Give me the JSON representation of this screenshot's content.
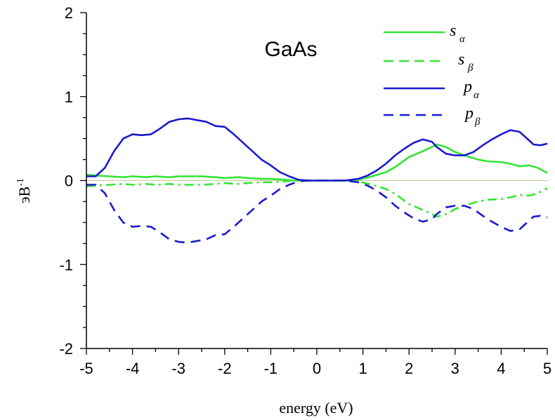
{
  "chart_data": {
    "type": "line",
    "title": "GaAs",
    "xlabel": "energy (eV)",
    "ylabel_base": "эВ",
    "ylabel_sup": "-1",
    "xlim": [
      -5,
      5
    ],
    "ylim": [
      -2,
      2
    ],
    "xticks": [
      "-5",
      "-4",
      "-3",
      "-2",
      "-1",
      "0",
      "1",
      "2",
      "3",
      "4",
      "5"
    ],
    "yticks": [
      "2",
      "1",
      "0",
      "-1",
      "-2"
    ],
    "legend_position": "top-right",
    "colors": {
      "green": "#33e433",
      "blue": "#1a1ad0",
      "zero_line": "#c8c896"
    },
    "series": [
      {
        "name": "s",
        "sub": "α",
        "color": "#33e433",
        "dash": "solid",
        "points": [
          [
            -5,
            0.07
          ],
          [
            -4.8,
            0.06
          ],
          [
            -4.5,
            0.05
          ],
          [
            -4.2,
            0.04
          ],
          [
            -4,
            0.05
          ],
          [
            -3.7,
            0.04
          ],
          [
            -3.5,
            0.05
          ],
          [
            -3.2,
            0.04
          ],
          [
            -3,
            0.05
          ],
          [
            -2.7,
            0.05
          ],
          [
            -2.5,
            0.05
          ],
          [
            -2.2,
            0.04
          ],
          [
            -2,
            0.03
          ],
          [
            -1.7,
            0.04
          ],
          [
            -1.5,
            0.03
          ],
          [
            -1.2,
            0.02
          ],
          [
            -1,
            0.02
          ],
          [
            -0.7,
            0.01
          ],
          [
            -0.5,
            0.0
          ],
          [
            -0.3,
            0.0
          ],
          [
            0,
            0
          ],
          [
            0.3,
            0
          ],
          [
            0.6,
            0
          ],
          [
            0.9,
            0.01
          ],
          [
            1.2,
            0.05
          ],
          [
            1.5,
            0.1
          ],
          [
            1.7,
            0.16
          ],
          [
            2,
            0.28
          ],
          [
            2.3,
            0.35
          ],
          [
            2.5,
            0.4
          ],
          [
            2.6,
            0.43
          ],
          [
            2.8,
            0.4
          ],
          [
            3,
            0.34
          ],
          [
            3.2,
            0.3
          ],
          [
            3.5,
            0.25
          ],
          [
            3.7,
            0.23
          ],
          [
            4,
            0.22
          ],
          [
            4.2,
            0.2
          ],
          [
            4.4,
            0.17
          ],
          [
            4.6,
            0.18
          ],
          [
            4.8,
            0.15
          ],
          [
            5,
            0.09
          ]
        ]
      },
      {
        "name": "s",
        "sub": "β",
        "color": "#33e433",
        "dash": "dashdot",
        "points": [
          [
            -5,
            -0.07
          ],
          [
            -4.8,
            -0.06
          ],
          [
            -4.5,
            -0.05
          ],
          [
            -4.2,
            -0.04
          ],
          [
            -4,
            -0.05
          ],
          [
            -3.7,
            -0.04
          ],
          [
            -3.5,
            -0.05
          ],
          [
            -3.2,
            -0.04
          ],
          [
            -3,
            -0.05
          ],
          [
            -2.7,
            -0.05
          ],
          [
            -2.5,
            -0.05
          ],
          [
            -2.2,
            -0.04
          ],
          [
            -2,
            -0.03
          ],
          [
            -1.7,
            -0.04
          ],
          [
            -1.5,
            -0.03
          ],
          [
            -1.2,
            -0.02
          ],
          [
            -1,
            -0.02
          ],
          [
            -0.7,
            -0.01
          ],
          [
            -0.5,
            0.0
          ],
          [
            -0.3,
            0.0
          ],
          [
            0,
            0
          ],
          [
            0.3,
            0
          ],
          [
            0.6,
            0
          ],
          [
            0.9,
            -0.01
          ],
          [
            1.2,
            -0.05
          ],
          [
            1.5,
            -0.1
          ],
          [
            1.7,
            -0.16
          ],
          [
            2,
            -0.28
          ],
          [
            2.3,
            -0.35
          ],
          [
            2.5,
            -0.4
          ],
          [
            2.6,
            -0.43
          ],
          [
            2.8,
            -0.4
          ],
          [
            3,
            -0.34
          ],
          [
            3.2,
            -0.3
          ],
          [
            3.5,
            -0.25
          ],
          [
            3.7,
            -0.23
          ],
          [
            4,
            -0.22
          ],
          [
            4.2,
            -0.2
          ],
          [
            4.4,
            -0.17
          ],
          [
            4.6,
            -0.18
          ],
          [
            4.8,
            -0.15
          ],
          [
            5,
            -0.09
          ]
        ]
      },
      {
        "name": "p",
        "sub": "α",
        "color": "#1a1ad0",
        "dash": "solid",
        "points": [
          [
            -5,
            0.05
          ],
          [
            -4.8,
            0.05
          ],
          [
            -4.6,
            0.15
          ],
          [
            -4.4,
            0.35
          ],
          [
            -4.2,
            0.5
          ],
          [
            -4,
            0.55
          ],
          [
            -3.8,
            0.54
          ],
          [
            -3.6,
            0.55
          ],
          [
            -3.4,
            0.62
          ],
          [
            -3.2,
            0.7
          ],
          [
            -3,
            0.73
          ],
          [
            -2.8,
            0.74
          ],
          [
            -2.6,
            0.72
          ],
          [
            -2.4,
            0.7
          ],
          [
            -2.2,
            0.65
          ],
          [
            -2,
            0.64
          ],
          [
            -1.8,
            0.55
          ],
          [
            -1.6,
            0.45
          ],
          [
            -1.4,
            0.35
          ],
          [
            -1.2,
            0.25
          ],
          [
            -1,
            0.18
          ],
          [
            -0.8,
            0.1
          ],
          [
            -0.6,
            0.05
          ],
          [
            -0.4,
            0.01
          ],
          [
            -0.2,
            0
          ],
          [
            0,
            0
          ],
          [
            0.3,
            0
          ],
          [
            0.6,
            0
          ],
          [
            0.9,
            0.02
          ],
          [
            1.1,
            0.06
          ],
          [
            1.3,
            0.12
          ],
          [
            1.5,
            0.2
          ],
          [
            1.7,
            0.3
          ],
          [
            1.9,
            0.38
          ],
          [
            2.1,
            0.45
          ],
          [
            2.3,
            0.49
          ],
          [
            2.5,
            0.46
          ],
          [
            2.6,
            0.4
          ],
          [
            2.8,
            0.32
          ],
          [
            3,
            0.3
          ],
          [
            3.2,
            0.3
          ],
          [
            3.4,
            0.34
          ],
          [
            3.6,
            0.42
          ],
          [
            3.8,
            0.49
          ],
          [
            4,
            0.55
          ],
          [
            4.2,
            0.6
          ],
          [
            4.4,
            0.58
          ],
          [
            4.6,
            0.48
          ],
          [
            4.7,
            0.43
          ],
          [
            4.85,
            0.42
          ],
          [
            5,
            0.44
          ]
        ]
      },
      {
        "name": "p",
        "sub": "β",
        "color": "#1a1ad0",
        "dash": "dashed",
        "points": [
          [
            -5,
            -0.05
          ],
          [
            -4.8,
            -0.05
          ],
          [
            -4.6,
            -0.15
          ],
          [
            -4.4,
            -0.35
          ],
          [
            -4.2,
            -0.5
          ],
          [
            -4,
            -0.55
          ],
          [
            -3.8,
            -0.54
          ],
          [
            -3.6,
            -0.55
          ],
          [
            -3.4,
            -0.62
          ],
          [
            -3.2,
            -0.7
          ],
          [
            -3,
            -0.73
          ],
          [
            -2.8,
            -0.74
          ],
          [
            -2.6,
            -0.72
          ],
          [
            -2.4,
            -0.7
          ],
          [
            -2.2,
            -0.65
          ],
          [
            -2,
            -0.64
          ],
          [
            -1.8,
            -0.55
          ],
          [
            -1.6,
            -0.45
          ],
          [
            -1.4,
            -0.35
          ],
          [
            -1.2,
            -0.25
          ],
          [
            -1,
            -0.18
          ],
          [
            -0.8,
            -0.1
          ],
          [
            -0.6,
            -0.05
          ],
          [
            -0.4,
            -0.01
          ],
          [
            -0.2,
            0
          ],
          [
            0,
            0
          ],
          [
            0.3,
            0
          ],
          [
            0.6,
            0
          ],
          [
            0.9,
            -0.02
          ],
          [
            1.1,
            -0.06
          ],
          [
            1.3,
            -0.12
          ],
          [
            1.5,
            -0.2
          ],
          [
            1.7,
            -0.3
          ],
          [
            1.9,
            -0.38
          ],
          [
            2.1,
            -0.45
          ],
          [
            2.3,
            -0.49
          ],
          [
            2.5,
            -0.46
          ],
          [
            2.6,
            -0.4
          ],
          [
            2.8,
            -0.32
          ],
          [
            3,
            -0.3
          ],
          [
            3.2,
            -0.3
          ],
          [
            3.4,
            -0.34
          ],
          [
            3.6,
            -0.42
          ],
          [
            3.8,
            -0.49
          ],
          [
            4,
            -0.55
          ],
          [
            4.2,
            -0.6
          ],
          [
            4.4,
            -0.58
          ],
          [
            4.6,
            -0.48
          ],
          [
            4.7,
            -0.43
          ],
          [
            4.85,
            -0.42
          ],
          [
            5,
            -0.44
          ]
        ]
      }
    ]
  }
}
